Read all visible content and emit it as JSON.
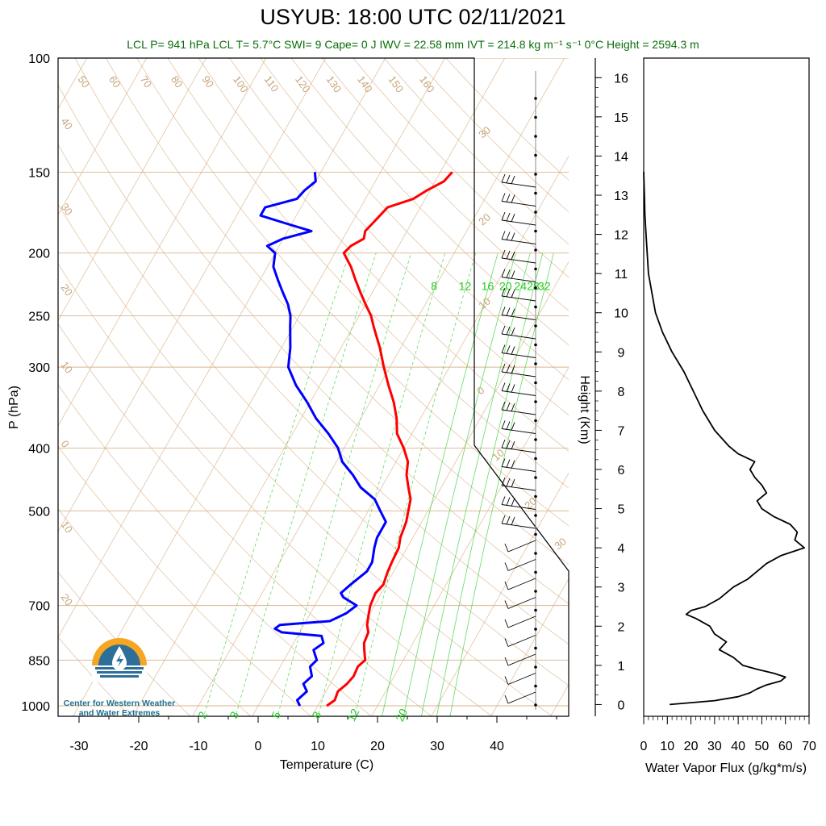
{
  "header": {
    "title": "USYUB: 18:00 UTC 02/11/2021",
    "subtitle": "LCL P= 941 hPa  LCL T= 5.7°C  SWI= 9  Cape= 0 J  IWV = 22.58 mm  IVT = 214.8 kg m⁻¹ s⁻¹  0°C Height = 2594.3 m"
  },
  "logo": {
    "line1": "Center for Western Weather",
    "line2": "and Water Extremes"
  },
  "colors": {
    "temperature": "#ff0000",
    "dewpoint": "#0000ff",
    "mixing_ratio": "#22cc22",
    "isotherm": "#d9b48c",
    "flux": "#000000"
  },
  "chart_data": [
    {
      "type": "line",
      "subtype": "skew-t",
      "xlabel": "Temperature (C)",
      "ylabel": "P (hPa)",
      "xlim": [
        -35,
        50
      ],
      "ylim": [
        1050,
        100
      ],
      "yscale": "log",
      "x_ticks": [
        "-30",
        "-20",
        "-10",
        "0",
        "10",
        "20",
        "30",
        "40"
      ],
      "y_ticks": [
        "100",
        "150",
        "200",
        "250",
        "300",
        "400",
        "500",
        "700",
        "850",
        "1000"
      ],
      "mixing_ratio_labels_top": [
        "8",
        "12",
        "16",
        "20",
        "24",
        "28",
        "32"
      ],
      "mixing_ratio_labels_bottom": [
        "2",
        "3",
        "5",
        "8",
        "12",
        "20"
      ],
      "dry_adiabat_labels": [
        "50",
        "60",
        "70",
        "80",
        "90",
        "100",
        "110",
        "120",
        "130",
        "140",
        "150",
        "160"
      ],
      "isotherm_labels": [
        "40",
        "30",
        "20",
        "10",
        "0",
        "10",
        "20"
      ],
      "side_labels": [
        "30",
        "20",
        "10",
        "0",
        "10",
        "20",
        "30"
      ],
      "series": [
        {
          "name": "Temperature",
          "p": [
            1000,
            980,
            950,
            925,
            900,
            870,
            850,
            820,
            800,
            770,
            750,
            720,
            700,
            670,
            650,
            620,
            600,
            570,
            550,
            520,
            500,
            480,
            460,
            440,
            420,
            400,
            380,
            360,
            340,
            320,
            300,
            280,
            260,
            250,
            240,
            230,
            220,
            210,
            200,
            195,
            190,
            185,
            180,
            175,
            170,
            165,
            160,
            155,
            150
          ],
          "t": [
            11.5,
            12.3,
            12.0,
            12.8,
            13.2,
            13.0,
            13.6,
            12.5,
            11.8,
            11.5,
            10.6,
            9.8,
            9.3,
            9.0,
            9.5,
            9.0,
            8.8,
            8.6,
            7.9,
            7.4,
            6.7,
            6.0,
            4.5,
            3.0,
            2.0,
            0.0,
            -2.5,
            -4.0,
            -6.0,
            -8.5,
            -11.0,
            -13.5,
            -16.5,
            -18.0,
            -20.0,
            -22.0,
            -24.0,
            -26.0,
            -28.5,
            -28.0,
            -26.5,
            -27.0,
            -26.5,
            -26.0,
            -25.5,
            -22.0,
            -20.5,
            -18.5,
            -18.0
          ]
        },
        {
          "name": "Dewpoint",
          "p": [
            1000,
            980,
            950,
            925,
            900,
            870,
            850,
            820,
            800,
            780,
            770,
            760,
            750,
            740,
            720,
            700,
            680,
            670,
            650,
            620,
            600,
            570,
            550,
            520,
            500,
            480,
            460,
            440,
            420,
            400,
            380,
            360,
            340,
            320,
            300,
            280,
            260,
            250,
            240,
            230,
            220,
            210,
            200,
            195,
            190,
            185,
            180,
            175,
            170,
            165,
            160,
            155,
            150
          ],
          "t": [
            7.0,
            6.0,
            6.8,
            5.5,
            6.2,
            5.0,
            5.5,
            4.0,
            5.0,
            4.0,
            -3.0,
            -4.5,
            -4.0,
            4.0,
            6.0,
            7.0,
            4.0,
            3.2,
            4.0,
            5.5,
            5.5,
            4.5,
            4.0,
            4.0,
            2.0,
            0.0,
            -3.5,
            -6.0,
            -9.0,
            -11.0,
            -14.0,
            -17.5,
            -20.5,
            -24.0,
            -27.0,
            -28.5,
            -30.5,
            -31.5,
            -33.0,
            -35.0,
            -37.0,
            -39.0,
            -40.0,
            -42.0,
            -40.0,
            -36.0,
            -41.0,
            -46.0,
            -46.0,
            -41.5,
            -41.0,
            -40.0,
            -41.0
          ]
        }
      ]
    },
    {
      "type": "line",
      "xlabel": "Water Vapor Flux (g/kg*m/s)",
      "ylabel": "Height (Km)",
      "xlim": [
        0,
        70
      ],
      "ylim": [
        -0.3,
        16.5
      ],
      "x_ticks": [
        "0",
        "10",
        "20",
        "30",
        "40",
        "50",
        "60",
        "70"
      ],
      "y_ticks": [
        "0",
        "1",
        "2",
        "3",
        "4",
        "5",
        "6",
        "7",
        "8",
        "9",
        "10",
        "11",
        "12",
        "13",
        "14",
        "15",
        "16"
      ],
      "series": [
        {
          "name": "",
          "height": [
            0.0,
            0.1,
            0.2,
            0.3,
            0.4,
            0.5,
            0.6,
            0.7,
            0.8,
            0.9,
            1.0,
            1.2,
            1.4,
            1.6,
            1.8,
            2.0,
            2.2,
            2.3,
            2.4,
            2.5,
            2.7,
            3.0,
            3.2,
            3.4,
            3.6,
            3.8,
            4.0,
            4.2,
            4.4,
            4.6,
            4.8,
            5.0,
            5.2,
            5.4,
            5.6,
            5.8,
            6.0,
            6.2,
            6.4,
            6.6,
            7.0,
            7.5,
            8.0,
            8.5,
            9.0,
            9.5,
            10.0,
            11.0,
            12.0,
            12.5,
            13.0,
            13.6
          ],
          "flux": [
            11,
            30,
            40,
            45,
            48,
            52,
            58,
            60,
            55,
            48,
            42,
            38,
            32,
            35,
            30,
            28,
            22,
            18,
            20,
            26,
            32,
            38,
            44,
            48,
            52,
            58,
            68,
            64,
            65,
            62,
            55,
            50,
            48,
            52,
            50,
            47,
            45,
            47,
            40,
            36,
            30,
            25,
            21,
            17,
            12,
            8,
            5,
            2,
            1,
            0.5,
            0.3,
            0
          ]
        }
      ]
    }
  ]
}
